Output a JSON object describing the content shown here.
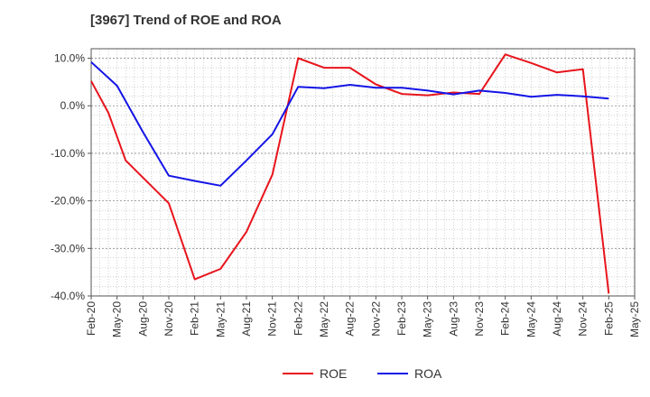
{
  "chart_data": {
    "type": "line",
    "title": "[3967]  Trend of ROE and ROA",
    "xlabel": "",
    "ylabel": "",
    "ylim": [
      -40,
      12
    ],
    "y_ticks": [
      10,
      0,
      -10,
      -20,
      -30,
      -40
    ],
    "y_tick_labels": [
      "10.0%",
      "0.0%",
      "-10.0%",
      "-20.0%",
      "-30.0%",
      "-40.0%"
    ],
    "categories": [
      "Feb-20",
      "May-20",
      "Aug-20",
      "Nov-20",
      "Feb-21",
      "May-21",
      "Aug-21",
      "Nov-21",
      "Feb-22",
      "May-22",
      "Aug-22",
      "Nov-22",
      "Feb-23",
      "May-23",
      "Aug-23",
      "Nov-23",
      "Feb-24",
      "May-24",
      "Aug-24",
      "Nov-24",
      "Feb-25",
      "May-25"
    ],
    "grid": true,
    "legend_position": "bottom",
    "series": [
      {
        "name": "ROE",
        "color": "#e8141c",
        "points": [
          [
            "Feb-20",
            5.2
          ],
          [
            "Apr-20",
            -1.5
          ],
          [
            "Jun-20",
            -11.5
          ],
          [
            "Nov-20",
            -20.5
          ],
          [
            "Feb-21",
            -36.5
          ],
          [
            "May-21",
            -34.3
          ],
          [
            "Aug-21",
            -26.5
          ],
          [
            "Nov-21",
            -14.5
          ],
          [
            "Feb-22",
            10.0
          ],
          [
            "May-22",
            8.0
          ],
          [
            "Aug-22",
            8.0
          ],
          [
            "Nov-22",
            4.5
          ],
          [
            "Feb-23",
            2.5
          ],
          [
            "May-23",
            2.2
          ],
          [
            "Aug-23",
            2.8
          ],
          [
            "Nov-23",
            2.5
          ],
          [
            "Feb-24",
            10.8
          ],
          [
            "May-24",
            9.0
          ],
          [
            "Aug-24",
            7.0
          ],
          [
            "Nov-24",
            7.7
          ],
          [
            "Feb-25",
            -39.5
          ]
        ]
      },
      {
        "name": "ROA",
        "color": "#1414e6",
        "points": [
          [
            "Feb-20",
            9.2
          ],
          [
            "May-20",
            4.2
          ],
          [
            "Aug-20",
            -5.5
          ],
          [
            "Nov-20",
            -14.7
          ],
          [
            "Feb-21",
            -15.8
          ],
          [
            "May-21",
            -16.8
          ],
          [
            "Aug-21",
            -11.5
          ],
          [
            "Nov-21",
            -6.0
          ],
          [
            "Feb-22",
            4.0
          ],
          [
            "May-22",
            3.7
          ],
          [
            "Aug-22",
            4.4
          ],
          [
            "Nov-22",
            3.8
          ],
          [
            "Feb-23",
            3.8
          ],
          [
            "May-23",
            3.2
          ],
          [
            "Aug-23",
            2.4
          ],
          [
            "Nov-23",
            3.2
          ],
          [
            "Feb-24",
            2.7
          ],
          [
            "May-24",
            1.9
          ],
          [
            "Aug-24",
            2.3
          ],
          [
            "Nov-24",
            2.0
          ],
          [
            "Feb-25",
            1.5
          ]
        ]
      }
    ]
  }
}
